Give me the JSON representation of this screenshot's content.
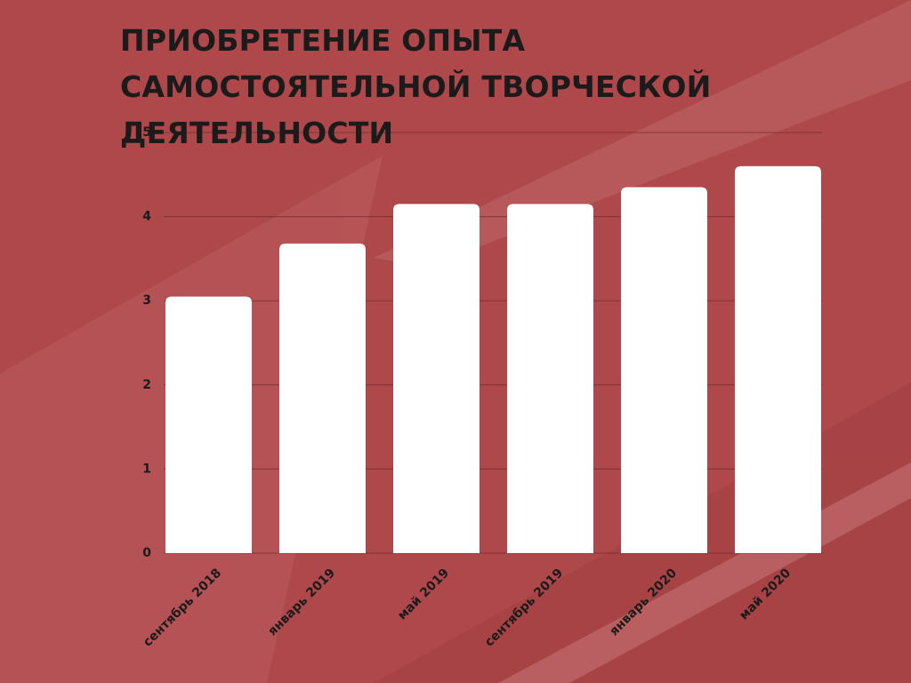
{
  "chart_data": {
    "type": "bar",
    "title": "ПРИОБРЕТЕНИЕ ОПЫТА САМОСТОЯТЕЛЬНОЙ ТВОРЧЕСКОЙ ДЕЯТЕЛЬНОСТИ",
    "categories": [
      "сентябрь 2018",
      "январь 2019",
      "май 2019",
      "сентябрь 2019",
      "январь 2020",
      "май 2020"
    ],
    "values": [
      3.05,
      3.68,
      4.15,
      4.15,
      4.35,
      4.6
    ],
    "color": "#ffffff",
    "ylim": [
      0,
      5
    ],
    "yticks": [
      0,
      1,
      2,
      3,
      4,
      5
    ],
    "grid": true
  }
}
